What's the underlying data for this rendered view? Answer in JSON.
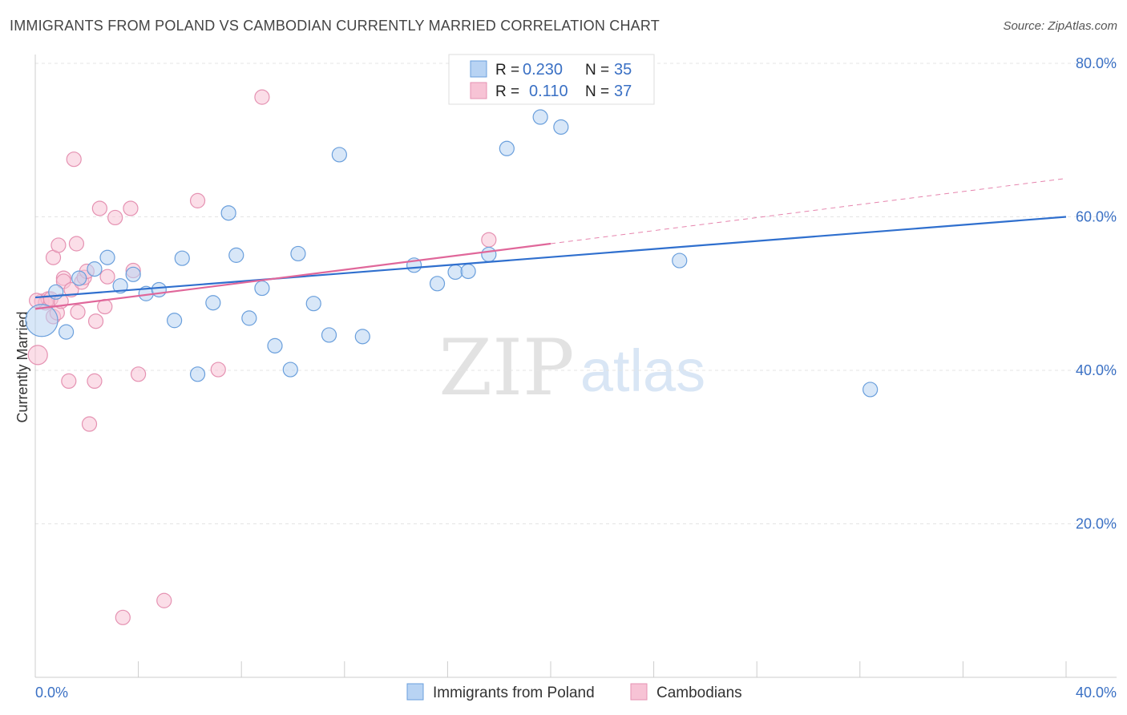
{
  "header": {
    "title": "IMMIGRANTS FROM POLAND VS CAMBODIAN CURRENTLY MARRIED CORRELATION CHART",
    "source": "Source: ZipAtlas.com"
  },
  "watermark": {
    "zip": "ZIP",
    "atlas": "atlas"
  },
  "legend_top": [
    {
      "r_label": "R =",
      "r_value": "0.230",
      "n_label": "N =",
      "n_value": "35"
    },
    {
      "r_label": "R =",
      "r_value": "0.110",
      "n_label": "N =",
      "n_value": "37"
    }
  ],
  "chart_data": {
    "type": "scatter",
    "ylabel": "Currently Married",
    "xlim": [
      0,
      40
    ],
    "ylim": [
      0,
      80
    ],
    "y_ticks": [
      20,
      40,
      60,
      80
    ],
    "y_tick_labels": [
      "20.0%",
      "40.0%",
      "60.0%",
      "80.0%"
    ],
    "x_tick_labels": {
      "min": "0.0%",
      "max": "40.0%"
    },
    "grid": true,
    "legend_position": "bottom",
    "colors": {
      "poland_fill": "#b8d3f3",
      "poland_stroke": "#6a9fdc",
      "poland_line": "#2f6fce",
      "cambodian_fill": "#f7c3d5",
      "cambodian_stroke": "#e592b2",
      "cambodian_line": "#e0679a"
    },
    "series": [
      {
        "name": "Immigrants from Poland",
        "r": 0.23,
        "n": 35,
        "trend": {
          "x0": 0,
          "y0": 49.5,
          "x1": 40,
          "y1": 60.0
        },
        "points": [
          [
            0.25,
            46.5
          ],
          [
            0.8,
            50.2
          ],
          [
            1.2,
            45.0
          ],
          [
            1.7,
            52.0
          ],
          [
            2.3,
            53.2
          ],
          [
            2.8,
            54.7
          ],
          [
            3.3,
            51.0
          ],
          [
            3.8,
            52.5
          ],
          [
            4.3,
            50.0
          ],
          [
            4.8,
            50.5
          ],
          [
            5.4,
            46.5
          ],
          [
            5.7,
            54.6
          ],
          [
            6.3,
            39.5
          ],
          [
            6.9,
            48.8
          ],
          [
            7.5,
            60.5
          ],
          [
            7.8,
            55.0
          ],
          [
            8.3,
            46.8
          ],
          [
            8.8,
            50.7
          ],
          [
            9.3,
            43.2
          ],
          [
            9.9,
            40.1
          ],
          [
            10.2,
            55.2
          ],
          [
            10.8,
            48.7
          ],
          [
            11.4,
            44.6
          ],
          [
            11.8,
            68.1
          ],
          [
            12.7,
            44.4
          ],
          [
            14.7,
            53.7
          ],
          [
            15.6,
            51.3
          ],
          [
            16.3,
            52.8
          ],
          [
            16.8,
            52.9
          ],
          [
            17.6,
            55.1
          ],
          [
            18.3,
            68.9
          ],
          [
            19.6,
            73.0
          ],
          [
            20.4,
            71.7
          ],
          [
            25.0,
            54.3
          ],
          [
            32.4,
            37.5
          ]
        ],
        "sizes": [
          20,
          9,
          9,
          9,
          9,
          9,
          9,
          9,
          9,
          9,
          9,
          9,
          9,
          9,
          9,
          9,
          9,
          9,
          9,
          9,
          9,
          9,
          9,
          9,
          9,
          9,
          9,
          9,
          9,
          9,
          9,
          9,
          9,
          9,
          9
        ]
      },
      {
        "name": "Cambodians",
        "r": 0.11,
        "n": 37,
        "trend": {
          "x0": 0,
          "y0": 48.0,
          "x1": 20,
          "y1": 56.5,
          "dash_to_x": 40,
          "dash_to_y": 65.0
        },
        "points": [
          [
            0.1,
            42.0
          ],
          [
            0.25,
            49.0
          ],
          [
            0.4,
            48.8
          ],
          [
            0.5,
            49.3
          ],
          [
            0.6,
            49.3
          ],
          [
            0.7,
            47.0
          ],
          [
            0.7,
            54.7
          ],
          [
            0.85,
            47.5
          ],
          [
            0.9,
            56.3
          ],
          [
            1.0,
            49.0
          ],
          [
            1.1,
            52.0
          ],
          [
            1.1,
            51.6
          ],
          [
            1.3,
            38.6
          ],
          [
            1.4,
            50.5
          ],
          [
            1.5,
            67.5
          ],
          [
            1.6,
            56.5
          ],
          [
            1.65,
            47.6
          ],
          [
            1.8,
            51.5
          ],
          [
            1.9,
            52.1
          ],
          [
            2.0,
            52.9
          ],
          [
            2.1,
            33.0
          ],
          [
            2.3,
            38.6
          ],
          [
            2.35,
            46.4
          ],
          [
            2.5,
            61.1
          ],
          [
            2.7,
            48.3
          ],
          [
            2.8,
            52.2
          ],
          [
            3.1,
            59.9
          ],
          [
            3.4,
            7.8
          ],
          [
            3.7,
            61.1
          ],
          [
            3.8,
            53.0
          ],
          [
            4.0,
            39.5
          ],
          [
            5.0,
            10.0
          ],
          [
            6.3,
            62.1
          ],
          [
            7.1,
            40.1
          ],
          [
            8.8,
            75.6
          ],
          [
            17.6,
            57.0
          ],
          [
            0.05,
            49.1
          ]
        ],
        "sizes": [
          12,
          9,
          9,
          9,
          9,
          9,
          9,
          9,
          9,
          9,
          9,
          9,
          9,
          9,
          9,
          9,
          9,
          9,
          9,
          9,
          9,
          9,
          9,
          9,
          9,
          9,
          9,
          9,
          9,
          9,
          9,
          9,
          9,
          9,
          9,
          9,
          9
        ]
      }
    ]
  }
}
